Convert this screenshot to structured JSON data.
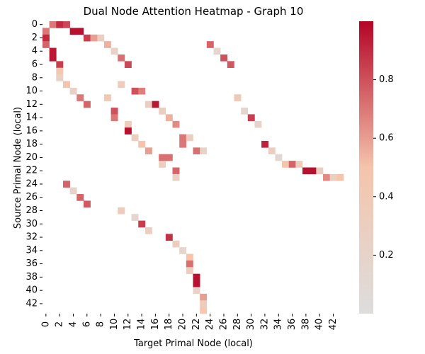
{
  "chart_data": {
    "type": "heatmap",
    "title": "Dual Node Attention Heatmap - Graph 10",
    "xlabel": "Target Primal Node (local)",
    "ylabel": "Source Primal Node (local)",
    "n_rows": 44,
    "n_cols": 44,
    "x_ticks": [
      "0",
      "2",
      "4",
      "6",
      "8",
      "10",
      "12",
      "14",
      "16",
      "18",
      "20",
      "22",
      "24",
      "26",
      "28",
      "30",
      "32",
      "34",
      "36",
      "38",
      "40",
      "42"
    ],
    "y_ticks": [
      "0",
      "2",
      "4",
      "6",
      "8",
      "10",
      "12",
      "14",
      "16",
      "18",
      "20",
      "22",
      "24",
      "26",
      "28",
      "30",
      "32",
      "34",
      "36",
      "38",
      "40",
      "42"
    ],
    "colorbar": {
      "min": 0,
      "max": 1.0,
      "ticks": [
        0.2,
        0.4,
        0.6,
        0.8
      ],
      "tick_labels": [
        "0.2",
        "0.4",
        "0.6",
        "0.8"
      ],
      "colormap": "coolwarm"
    },
    "cells": [
      {
        "row": 0,
        "col": 1,
        "value": 0.7
      },
      {
        "row": 0,
        "col": 2,
        "value": 0.9
      },
      {
        "row": 0,
        "col": 3,
        "value": 0.82
      },
      {
        "row": 1,
        "col": 0,
        "value": 0.7
      },
      {
        "row": 1,
        "col": 4,
        "value": 0.97
      },
      {
        "row": 1,
        "col": 5,
        "value": 0.97
      },
      {
        "row": 2,
        "col": 0,
        "value": 0.9
      },
      {
        "row": 2,
        "col": 6,
        "value": 0.85
      },
      {
        "row": 2,
        "col": 7,
        "value": 0.6
      },
      {
        "row": 2,
        "col": 8,
        "value": 0.3
      },
      {
        "row": 3,
        "col": 0,
        "value": 0.75
      },
      {
        "row": 3,
        "col": 9,
        "value": 0.55
      },
      {
        "row": 3,
        "col": 24,
        "value": 0.75
      },
      {
        "row": 4,
        "col": 1,
        "value": 0.95
      },
      {
        "row": 4,
        "col": 10,
        "value": 0.25
      },
      {
        "row": 4,
        "col": 25,
        "value": 0.15
      },
      {
        "row": 5,
        "col": 1,
        "value": 0.95
      },
      {
        "row": 5,
        "col": 11,
        "value": 0.72
      },
      {
        "row": 5,
        "col": 26,
        "value": 0.8
      },
      {
        "row": 6,
        "col": 2,
        "value": 0.85
      },
      {
        "row": 6,
        "col": 12,
        "value": 0.82
      },
      {
        "row": 6,
        "col": 27,
        "value": 0.78
      },
      {
        "row": 7,
        "col": 2,
        "value": 0.45
      },
      {
        "row": 8,
        "col": 2,
        "value": 0.25
      },
      {
        "row": 9,
        "col": 3,
        "value": 0.5
      },
      {
        "row": 9,
        "col": 11,
        "value": 0.35
      },
      {
        "row": 10,
        "col": 4,
        "value": 0.25
      },
      {
        "row": 10,
        "col": 13,
        "value": 0.8
      },
      {
        "row": 10,
        "col": 14,
        "value": 0.68
      },
      {
        "row": 11,
        "col": 5,
        "value": 0.7
      },
      {
        "row": 11,
        "col": 9,
        "value": 0.4
      },
      {
        "row": 11,
        "col": 28,
        "value": 0.4
      },
      {
        "row": 12,
        "col": 6,
        "value": 0.75
      },
      {
        "row": 12,
        "col": 15,
        "value": 0.3
      },
      {
        "row": 12,
        "col": 16,
        "value": 0.95
      },
      {
        "row": 13,
        "col": 10,
        "value": 0.8
      },
      {
        "row": 13,
        "col": 17,
        "value": 0.3
      },
      {
        "row": 13,
        "col": 29,
        "value": 0.15
      },
      {
        "row": 14,
        "col": 10,
        "value": 0.7
      },
      {
        "row": 14,
        "col": 18,
        "value": 0.55
      },
      {
        "row": 14,
        "col": 30,
        "value": 0.85
      },
      {
        "row": 15,
        "col": 12,
        "value": 0.35
      },
      {
        "row": 15,
        "col": 19,
        "value": 0.65
      },
      {
        "row": 15,
        "col": 31,
        "value": 0.2
      },
      {
        "row": 16,
        "col": 12,
        "value": 0.97
      },
      {
        "row": 17,
        "col": 13,
        "value": 0.3
      },
      {
        "row": 17,
        "col": 20,
        "value": 0.7
      },
      {
        "row": 17,
        "col": 21,
        "value": 0.3
      },
      {
        "row": 18,
        "col": 14,
        "value": 0.5
      },
      {
        "row": 18,
        "col": 20,
        "value": 0.7
      },
      {
        "row": 18,
        "col": 32,
        "value": 0.92
      },
      {
        "row": 19,
        "col": 15,
        "value": 0.6
      },
      {
        "row": 19,
        "col": 22,
        "value": 0.72
      },
      {
        "row": 19,
        "col": 23,
        "value": 0.25
      },
      {
        "row": 19,
        "col": 33,
        "value": 0.3
      },
      {
        "row": 20,
        "col": 17,
        "value": 0.72
      },
      {
        "row": 20,
        "col": 18,
        "value": 0.72
      },
      {
        "row": 20,
        "col": 34,
        "value": 0.1
      },
      {
        "row": 21,
        "col": 17,
        "value": 0.3
      },
      {
        "row": 21,
        "col": 35,
        "value": 0.5
      },
      {
        "row": 21,
        "col": 36,
        "value": 0.75
      },
      {
        "row": 21,
        "col": 37,
        "value": 0.35
      },
      {
        "row": 22,
        "col": 19,
        "value": 0.75
      },
      {
        "row": 22,
        "col": 38,
        "value": 0.97
      },
      {
        "row": 22,
        "col": 39,
        "value": 0.97
      },
      {
        "row": 22,
        "col": 40,
        "value": 0.3
      },
      {
        "row": 23,
        "col": 19,
        "value": 0.25
      },
      {
        "row": 23,
        "col": 41,
        "value": 0.65
      },
      {
        "row": 23,
        "col": 42,
        "value": 0.3
      },
      {
        "row": 23,
        "col": 43,
        "value": 0.5
      },
      {
        "row": 24,
        "col": 3,
        "value": 0.75
      },
      {
        "row": 25,
        "col": 4,
        "value": 0.2
      },
      {
        "row": 26,
        "col": 5,
        "value": 0.75
      },
      {
        "row": 27,
        "col": 6,
        "value": 0.78
      },
      {
        "row": 28,
        "col": 11,
        "value": 0.35
      },
      {
        "row": 29,
        "col": 13,
        "value": 0.15
      },
      {
        "row": 30,
        "col": 14,
        "value": 0.85
      },
      {
        "row": 31,
        "col": 15,
        "value": 0.3
      },
      {
        "row": 32,
        "col": 18,
        "value": 0.88
      },
      {
        "row": 33,
        "col": 19,
        "value": 0.3
      },
      {
        "row": 34,
        "col": 20,
        "value": 0.15
      },
      {
        "row": 35,
        "col": 21,
        "value": 0.5
      },
      {
        "row": 36,
        "col": 21,
        "value": 0.72
      },
      {
        "row": 37,
        "col": 21,
        "value": 0.3
      },
      {
        "row": 38,
        "col": 22,
        "value": 0.97
      },
      {
        "row": 39,
        "col": 22,
        "value": 0.97
      },
      {
        "row": 40,
        "col": 22,
        "value": 0.25
      },
      {
        "row": 41,
        "col": 23,
        "value": 0.6
      },
      {
        "row": 42,
        "col": 23,
        "value": 0.35
      },
      {
        "row": 43,
        "col": 23,
        "value": 0.45
      }
    ]
  }
}
